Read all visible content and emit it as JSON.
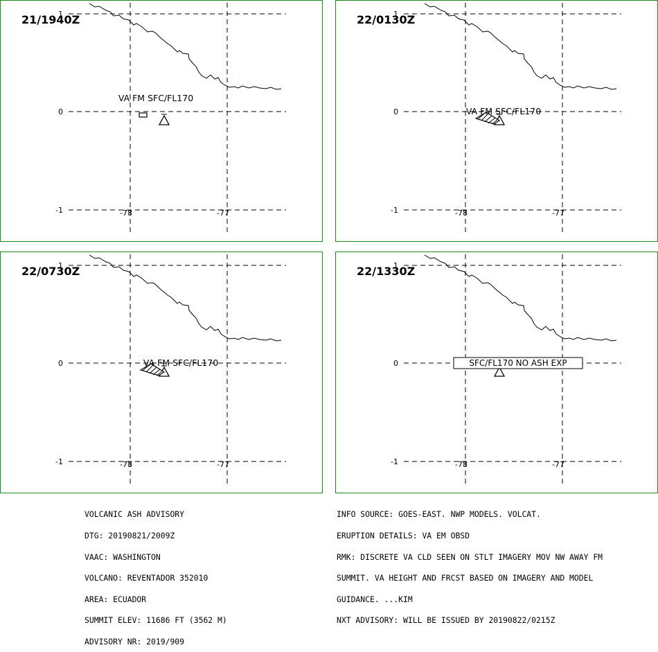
{
  "panels": [
    {
      "time": "21/1940Z",
      "cloud_label": "VA FM SFC/FL170",
      "cloud_type": "box",
      "boxed": false
    },
    {
      "time": "22/0130Z",
      "cloud_label": "VA FM SFC/FL170",
      "cloud_type": "hatched",
      "boxed": false
    },
    {
      "time": "22/0730Z",
      "cloud_label": "VA FM SFC/FL170",
      "cloud_type": "hatched",
      "boxed": false
    },
    {
      "time": "22/1330Z",
      "cloud_label": "SFC/FL170 NO ASH EXP",
      "cloud_type": "none",
      "boxed": true
    }
  ],
  "axes": {
    "lat_labels": [
      "1",
      "0",
      "-1"
    ],
    "lon_labels": [
      "-78",
      "-77"
    ]
  },
  "colors": {
    "panel_border": "#1a8a1a",
    "lines": "#000000"
  },
  "advisory_left": [
    "VOLCANIC ASH ADVISORY",
    "DTG: 20190821/2009Z",
    "VAAC: WASHINGTON",
    "VOLCANO: REVENTADOR 352010",
    "AREA: ECUADOR",
    "SUMMIT ELEV: 11686 FT (3562 M)",
    "ADVISORY NR: 2019/909"
  ],
  "advisory_right": [
    "INFO SOURCE: GOES-EAST. NWP MODELS. VOLCAT.",
    "ERUPTION DETAILS: VA EM OBSD",
    "RMK: DISCRETE VA CLD SEEN ON STLT IMAGERY MOV NW AWAY FM",
    "SUMMIT. VA HEIGHT AND FRCST BASED ON IMAGERY AND MODEL",
    "GUIDANCE. ...KIM",
    "NXT ADVISORY: WILL BE ISSUED BY 20190822/0215Z"
  ]
}
